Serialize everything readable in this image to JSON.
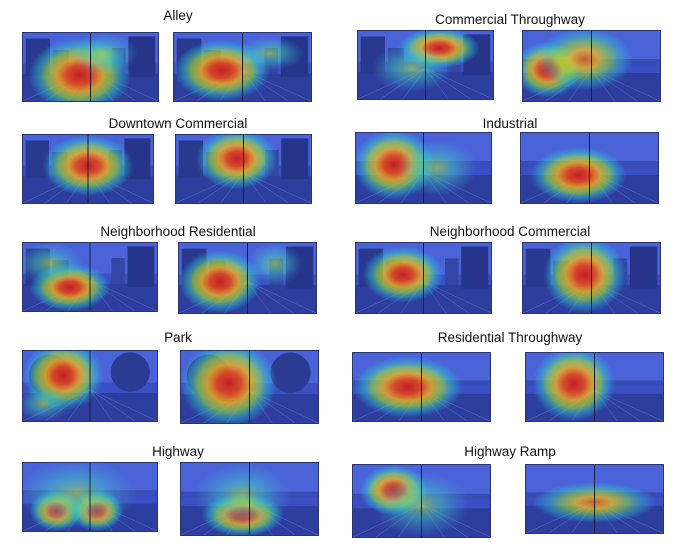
{
  "panels": [
    {
      "title": "Alley",
      "left": {
        "blobs": [
          [
            0.42,
            0.62,
            0.38,
            0.55,
            1.0
          ],
          [
            0.6,
            0.3,
            0.25,
            0.3,
            0.5
          ]
        ],
        "scene": "street"
      },
      "right": {
        "blobs": [
          [
            0.35,
            0.55,
            0.35,
            0.45,
            0.95
          ],
          [
            0.7,
            0.3,
            0.25,
            0.25,
            0.5
          ]
        ],
        "scene": "street"
      }
    },
    {
      "title": "Commercial Throughway",
      "left": {
        "blobs": [
          [
            0.6,
            0.25,
            0.3,
            0.3,
            0.95
          ],
          [
            0.4,
            0.55,
            0.3,
            0.35,
            0.5
          ]
        ],
        "scene": "street"
      },
      "right": {
        "blobs": [
          [
            0.18,
            0.55,
            0.25,
            0.4,
            1.0
          ],
          [
            0.45,
            0.4,
            0.35,
            0.45,
            0.7
          ]
        ],
        "scene": "road"
      }
    },
    {
      "title": "Downtown Commercial",
      "left": {
        "blobs": [
          [
            0.5,
            0.45,
            0.35,
            0.45,
            0.9
          ]
        ],
        "scene": "street"
      },
      "right": {
        "blobs": [
          [
            0.45,
            0.35,
            0.3,
            0.45,
            0.95
          ]
        ],
        "scene": "street"
      }
    },
    {
      "title": "Industrial",
      "left": {
        "blobs": [
          [
            0.28,
            0.45,
            0.3,
            0.5,
            1.0
          ],
          [
            0.6,
            0.5,
            0.3,
            0.4,
            0.6
          ]
        ],
        "scene": "road"
      },
      "right": {
        "blobs": [
          [
            0.42,
            0.6,
            0.35,
            0.4,
            0.95
          ]
        ],
        "scene": "road"
      }
    },
    {
      "title": "Neighborhood Residential",
      "left": {
        "blobs": [
          [
            0.35,
            0.65,
            0.3,
            0.35,
            0.95
          ],
          [
            0.2,
            0.3,
            0.25,
            0.3,
            0.6
          ]
        ],
        "scene": "street"
      },
      "right": {
        "blobs": [
          [
            0.3,
            0.55,
            0.3,
            0.45,
            0.9
          ],
          [
            0.7,
            0.3,
            0.2,
            0.3,
            0.6
          ]
        ],
        "scene": "street"
      }
    },
    {
      "title": "Neighborhood Commercial",
      "left": {
        "blobs": [
          [
            0.35,
            0.45,
            0.3,
            0.4,
            0.9
          ]
        ],
        "scene": "street"
      },
      "right": {
        "blobs": [
          [
            0.45,
            0.45,
            0.3,
            0.55,
            1.0
          ]
        ],
        "scene": "street"
      }
    },
    {
      "title": "Park",
      "left": {
        "blobs": [
          [
            0.3,
            0.35,
            0.3,
            0.5,
            0.95
          ],
          [
            0.15,
            0.75,
            0.2,
            0.25,
            0.6
          ]
        ],
        "scene": "park"
      },
      "right": {
        "blobs": [
          [
            0.35,
            0.45,
            0.35,
            0.6,
            1.0
          ]
        ],
        "scene": "park"
      }
    },
    {
      "title": "Residential Throughway",
      "left": {
        "blobs": [
          [
            0.4,
            0.5,
            0.4,
            0.45,
            0.9
          ]
        ],
        "scene": "road"
      },
      "right": {
        "blobs": [
          [
            0.35,
            0.45,
            0.3,
            0.55,
            1.0
          ]
        ],
        "scene": "road"
      }
    },
    {
      "title": "Highway",
      "left": {
        "blobs": [
          [
            0.25,
            0.7,
            0.2,
            0.3,
            1.0
          ],
          [
            0.55,
            0.7,
            0.2,
            0.3,
            0.95
          ],
          [
            0.4,
            0.45,
            0.45,
            0.5,
            0.5
          ]
        ],
        "scene": "road"
      },
      "right": {
        "blobs": [
          [
            0.45,
            0.72,
            0.3,
            0.3,
            1.0
          ],
          [
            0.45,
            0.45,
            0.35,
            0.45,
            0.5
          ]
        ],
        "scene": "road"
      }
    },
    {
      "title": "Highway Ramp",
      "left": {
        "blobs": [
          [
            0.3,
            0.35,
            0.25,
            0.35,
            1.0
          ],
          [
            0.5,
            0.55,
            0.35,
            0.45,
            0.5
          ]
        ],
        "scene": "road"
      },
      "right": {
        "blobs": [
          [
            0.5,
            0.55,
            0.45,
            0.3,
            0.8
          ]
        ],
        "scene": "road"
      }
    }
  ]
}
